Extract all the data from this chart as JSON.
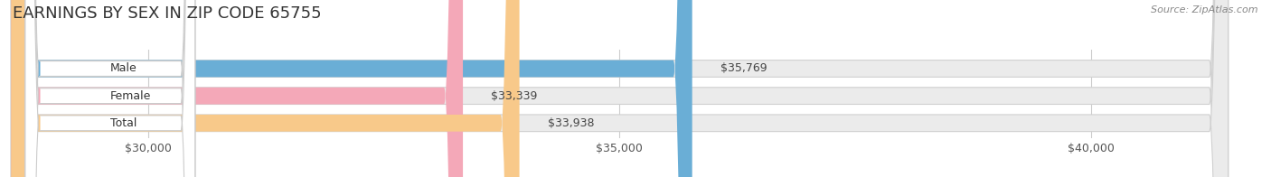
{
  "title": "EARNINGS BY SEX IN ZIP CODE 65755",
  "source": "Source: ZipAtlas.com",
  "categories": [
    "Male",
    "Female",
    "Total"
  ],
  "values": [
    35769,
    33339,
    33938
  ],
  "bar_colors": [
    "#6aaed6",
    "#f4a8b8",
    "#f8c98a"
  ],
  "xmin": 30000,
  "xmax": 40000,
  "xticks": [
    30000,
    35000,
    40000
  ],
  "xtick_labels": [
    "$30,000",
    "$35,000",
    "$40,000"
  ],
  "bg_color": "#ffffff",
  "bar_bg_color": "#ebebeb",
  "bar_border_color": "#d0d0d0",
  "title_fontsize": 13,
  "tick_fontsize": 9,
  "bar_label_fontsize": 9,
  "category_fontsize": 9
}
